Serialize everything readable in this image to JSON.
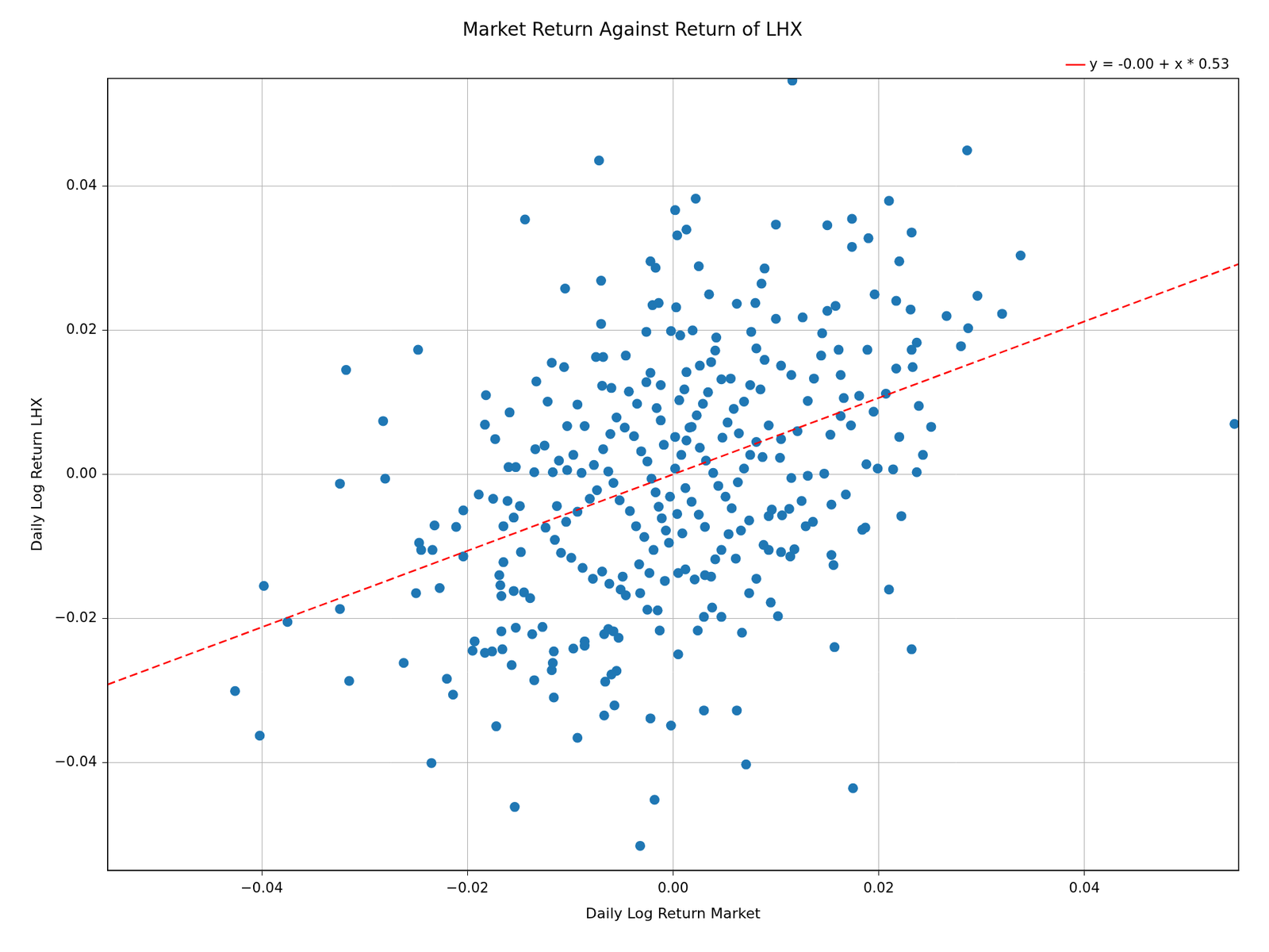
{
  "chart_data": {
    "type": "scatter",
    "title": "Market Return Against Return of LHX",
    "x_label": "Daily Log Return Market",
    "y_label": "Daily Log Return LHX",
    "xlim": [
      -0.055,
      0.055
    ],
    "ylim": [
      -0.055,
      0.055
    ],
    "xticks": [
      {
        "value": -0.04,
        "label": "−0.04"
      },
      {
        "value": -0.02,
        "label": "−0.02"
      },
      {
        "value": 0,
        "label": "0.00"
      },
      {
        "value": 0.02,
        "label": "0.02"
      },
      {
        "value": 0.04,
        "label": "0.04"
      }
    ],
    "yticks": [
      {
        "value": -0.04,
        "label": "−0.04"
      },
      {
        "value": -0.02,
        "label": "−0.02"
      },
      {
        "value": 0,
        "label": "0.00"
      },
      {
        "value": 0.02,
        "label": "0.02"
      },
      {
        "value": 0.04,
        "label": "0.04"
      }
    ],
    "grid": true,
    "legend": "upper right",
    "series": [
      {
        "type": "scatter",
        "color": "#1f77b4",
        "marker": "circle",
        "x": [
          0.0116,
          -0.0072,
          0.0286,
          0.0546,
          -0.0144,
          0.0022,
          0.0002,
          0.0013,
          0.0004,
          0.01,
          0.015,
          0.0174,
          0.0174,
          0.021,
          0.0232,
          0.019,
          0.0338,
          0.022,
          0.0296,
          0.0287,
          0.032,
          0.0266,
          0.028,
          0.0251,
          0.0243,
          0.0237,
          0.0232,
          0.0222,
          0.021,
          0.0175,
          0.0157,
          0.0071,
          0.0062,
          0.003,
          -0.0002,
          -0.0022,
          -0.0018,
          -0.0032,
          -0.0154,
          -0.0235,
          -0.0093,
          -0.0172,
          -0.0116,
          -0.0214,
          -0.022,
          -0.0262,
          -0.0315,
          -0.0402,
          -0.0426,
          -0.0375,
          -0.0398,
          -0.0324,
          -0.025,
          -0.0227,
          -0.0318,
          -0.0248,
          -0.0282,
          -0.028,
          -0.0324,
          -0.0247,
          -0.0245,
          -0.0234,
          -0.0232,
          -0.0211,
          -0.0204,
          -0.0204,
          -0.0182,
          -0.0183,
          -0.0159,
          -0.0173,
          -0.0105,
          -0.007,
          -0.007,
          -0.0022,
          -0.0017,
          -0.002,
          -0.0014,
          0.0003,
          0.0025,
          0.0035,
          0.0089,
          0.0086,
          0.0062,
          0.008,
          0.01,
          0.0126,
          0.015,
          0.0158,
          0.0196,
          0.0217,
          0.0231,
          0.0232,
          0.0237,
          0.0189,
          0.0217,
          0.0233,
          0.0239,
          0.0195,
          0.0207,
          0.022,
          0.0188,
          0.0199,
          0.0214,
          0.0184,
          0.0187,
          0.0154,
          0.0168,
          0.0154,
          0.0156,
          0.0147,
          0.0131,
          -0.0167,
          -0.0137,
          -0.0127,
          -0.0153,
          -0.0116,
          -0.0118,
          -0.0097,
          -0.0086,
          -0.0086,
          -0.0157,
          -0.0135,
          -0.0117,
          -0.0176,
          -0.0183,
          -0.0195,
          -0.0193,
          -0.0166,
          -0.0167,
          -0.0168,
          -0.0169,
          -0.0165,
          -0.0155,
          -0.0145,
          -0.0139,
          -0.0148,
          -0.0165,
          -0.0155,
          -0.0149,
          -0.0161,
          -0.0175,
          -0.0189,
          -0.016,
          -0.0153,
          -0.0135,
          -0.0117,
          -0.0133,
          -0.0118,
          -0.0106,
          -0.0122,
          -0.0093,
          -0.0103,
          -0.0086,
          -0.0125,
          -0.0134,
          -0.0075,
          -0.0068,
          -0.0069,
          -0.006,
          -0.0046,
          -0.0043,
          -0.0035,
          -0.0026,
          -0.0022,
          -0.0012,
          -0.0026,
          -0.0002,
          0.0007,
          0.0019,
          0.0042,
          0.0037,
          0.0026,
          0.0041,
          0.0056,
          0.0075,
          0.0069,
          0.0085,
          0.0076,
          0.0081,
          0.0089,
          0.0105,
          0.0115,
          0.0137,
          0.0145,
          0.0144,
          0.0161,
          0.0163,
          0.0131,
          0.0166,
          0.0181,
          0.0173,
          0.0163,
          0.0153,
          0.0121,
          0.0105,
          0.0093,
          0.0104,
          0.0115,
          0.0125,
          0.0113,
          0.0106,
          0.0136,
          0.0129,
          0.0118,
          0.0114,
          0.0105,
          0.0093,
          0.0088,
          0.0093,
          0.0096,
          0.0074,
          0.0066,
          0.0054,
          0.0047,
          0.0041,
          0.0037,
          0.0031,
          0.0021,
          0.0012,
          0.0005,
          0.0038,
          0.0047,
          0.003,
          0.0024,
          0.0061,
          0.0081,
          0.0074,
          0.0095,
          0.0102,
          0.0067,
          0.0005,
          -0.0013,
          -0.0015,
          -0.0025,
          -0.0032,
          -0.0046,
          -0.0051,
          -0.0062,
          -0.0049,
          -0.0069,
          -0.0063,
          -0.0058,
          -0.0067,
          -0.0053,
          -0.0055,
          -0.006,
          -0.0066,
          -0.0067,
          -0.0057,
          -0.0078,
          -0.0088,
          -0.0099,
          -0.0109,
          -0.0115,
          -0.0124,
          -0.0104,
          -0.0113,
          -0.0093,
          -0.0081,
          -0.0074,
          -0.0089,
          -0.0103,
          -0.0111,
          -0.0097,
          -0.0077,
          -0.0068,
          -0.0061,
          -0.0055,
          -0.0047,
          -0.0038,
          -0.0031,
          -0.0025,
          -0.0021,
          -0.0017,
          -0.0014,
          -0.0011,
          -0.0007,
          -0.0004,
          -0.0019,
          -0.0028,
          -0.0036,
          -0.0042,
          -0.0052,
          -0.0058,
          -0.0063,
          -0.0033,
          -0.0023,
          -0.0008,
          0.0002,
          0.0008,
          0.0013,
          0.0018,
          0.0023,
          0.0029,
          0.0034,
          0.0006,
          0.0011,
          0.0016,
          0.0026,
          0.0032,
          0.0039,
          0.0044,
          0.0051,
          0.0057,
          0.0063,
          0.0069,
          0.0075,
          0.0081,
          0.0087,
          0.0048,
          0.0053,
          0.0059,
          0.0064,
          0.0012,
          0.0018,
          0.0025,
          0.0031,
          0.0004,
          0.0009,
          -0.0003,
          0.0002,
          -0.0009,
          -0.0012,
          -0.0016,
          0.0047,
          0.0013
        ],
        "values": [
          0.0547,
          0.0436,
          0.045,
          0.007,
          0.0354,
          0.0383,
          0.0367,
          0.034,
          0.0332,
          0.0347,
          0.0346,
          0.0355,
          0.0316,
          0.038,
          0.0336,
          0.0328,
          0.0304,
          0.0296,
          0.0248,
          0.0203,
          0.0223,
          0.022,
          0.0178,
          0.0066,
          0.0027,
          0.0003,
          -0.0243,
          -0.0058,
          -0.016,
          -0.0436,
          -0.024,
          -0.0403,
          -0.0328,
          -0.0328,
          -0.0349,
          -0.0339,
          -0.0452,
          -0.0516,
          -0.0462,
          -0.0401,
          -0.0366,
          -0.035,
          -0.031,
          -0.0306,
          -0.0284,
          -0.0262,
          -0.0287,
          -0.0363,
          -0.0301,
          -0.0205,
          -0.0155,
          -0.0187,
          -0.0165,
          -0.0158,
          0.0145,
          0.0173,
          0.0074,
          -0.0006,
          -0.0013,
          -0.0095,
          -0.0105,
          -0.0105,
          -0.0071,
          -0.0073,
          -0.005,
          -0.0114,
          0.011,
          0.0069,
          0.0086,
          0.0049,
          0.0258,
          0.0269,
          0.0209,
          0.0296,
          0.0287,
          0.0235,
          0.0238,
          0.0232,
          0.0289,
          0.025,
          0.0286,
          0.0265,
          0.0237,
          0.0238,
          0.0216,
          0.0218,
          0.0227,
          0.0234,
          0.025,
          0.0241,
          0.0229,
          0.0173,
          0.0183,
          0.0173,
          0.0147,
          0.0149,
          0.0095,
          0.0087,
          0.0112,
          0.0052,
          0.0014,
          0.0008,
          0.0007,
          -0.0077,
          -0.0074,
          -0.0042,
          -0.0028,
          -0.0112,
          -0.0126,
          0.0001,
          -0.0002,
          -0.0218,
          -0.0222,
          -0.0212,
          -0.0213,
          -0.0246,
          -0.0272,
          -0.0242,
          -0.0232,
          -0.0238,
          -0.0265,
          -0.0286,
          -0.0262,
          -0.0246,
          -0.0248,
          -0.0245,
          -0.0232,
          -0.0243,
          -0.0169,
          -0.0154,
          -0.014,
          -0.0122,
          -0.0162,
          -0.0164,
          -0.0172,
          -0.0108,
          -0.0072,
          -0.006,
          -0.0044,
          -0.0037,
          -0.0034,
          -0.0028,
          0.001,
          0.001,
          0.0003,
          0.0003,
          0.0129,
          0.0155,
          0.0149,
          0.0101,
          0.0097,
          0.0067,
          0.0067,
          0.004,
          0.0035,
          0.0163,
          0.0163,
          0.0123,
          0.012,
          0.0165,
          0.0115,
          0.0098,
          0.0128,
          0.0141,
          0.0124,
          0.0198,
          0.0199,
          0.0193,
          0.02,
          0.019,
          0.0156,
          0.0151,
          0.0172,
          0.0133,
          0.0124,
          0.0101,
          0.0118,
          0.0198,
          0.0175,
          0.0159,
          0.0151,
          0.0138,
          0.0133,
          0.0196,
          0.0165,
          0.0173,
          0.0138,
          0.0102,
          0.0106,
          0.0109,
          0.0068,
          0.0081,
          0.0055,
          0.006,
          0.0049,
          0.0068,
          0.0023,
          -0.0005,
          -0.0037,
          -0.0048,
          -0.0057,
          -0.0066,
          -0.0072,
          -0.0104,
          -0.0114,
          -0.0108,
          -0.0105,
          -0.0098,
          -0.0058,
          -0.0049,
          -0.0064,
          -0.0078,
          -0.0083,
          -0.0105,
          -0.0118,
          -0.0142,
          -0.014,
          -0.0146,
          -0.0132,
          -0.0137,
          -0.0185,
          -0.0198,
          -0.0198,
          -0.0217,
          -0.0117,
          -0.0145,
          -0.0165,
          -0.0178,
          -0.0197,
          -0.022,
          -0.025,
          -0.0217,
          -0.0189,
          -0.0188,
          -0.0165,
          -0.0168,
          -0.016,
          -0.0152,
          -0.0142,
          -0.0135,
          -0.0215,
          -0.0218,
          -0.0222,
          -0.0227,
          -0.0273,
          -0.0278,
          -0.0288,
          -0.0335,
          -0.0321,
          -0.0145,
          -0.013,
          -0.0116,
          -0.0109,
          -0.0091,
          -0.0074,
          -0.0066,
          -0.0044,
          -0.0052,
          -0.0034,
          -0.0022,
          0.0002,
          0.0006,
          0.0019,
          0.0027,
          0.0013,
          0.0035,
          0.0056,
          0.0079,
          0.0065,
          0.0053,
          0.0032,
          0.0018,
          -0.0006,
          -0.0025,
          -0.0045,
          -0.0061,
          -0.0078,
          -0.0095,
          -0.0105,
          -0.0087,
          -0.0072,
          -0.0051,
          -0.0036,
          -0.0012,
          0.0004,
          -0.0125,
          -0.0137,
          -0.0148,
          0.0008,
          0.0027,
          0.0047,
          0.0066,
          0.0082,
          0.0098,
          0.0114,
          0.0103,
          0.0118,
          0.0065,
          0.0037,
          0.0019,
          0.0002,
          -0.0016,
          -0.0031,
          -0.0047,
          -0.0011,
          0.0008,
          0.0027,
          0.0045,
          0.0024,
          0.0051,
          0.0072,
          0.0091,
          0.0057,
          -0.0019,
          -0.0038,
          -0.0056,
          -0.0073,
          -0.0055,
          -0.0082,
          -0.0031,
          0.0052,
          0.0041,
          0.0075,
          0.0092,
          0.0132,
          0.0142
        ]
      },
      {
        "name": "y = -0.00 + x * 0.53",
        "type": "line",
        "color": "#ff0000",
        "line_style": "dashed",
        "marker": "none",
        "x": [
          -0.055,
          0.055
        ],
        "values": [
          -0.0292,
          0.0292
        ]
      }
    ]
  }
}
